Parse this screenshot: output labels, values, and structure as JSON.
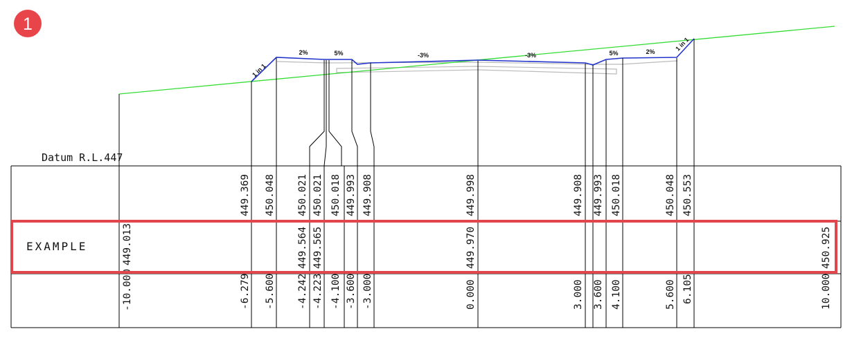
{
  "badge": {
    "number": "1",
    "color": "#e8454b"
  },
  "datum_label": "Datum R.L.447",
  "row_label": "EXAMPLE",
  "colors": {
    "ground_line": "#33dd33",
    "design_line": "#2233cc",
    "pavement_layers": "#bbbbbb",
    "highlight": "#e0464b",
    "grid": "#000000"
  },
  "design_levels": [
    "449.369",
    "450.048",
    "450.021",
    "450.021",
    "450.018",
    "449.993",
    "449.908",
    "449.998",
    "449.908",
    "449.993",
    "450.018",
    "450.048",
    "450.553"
  ],
  "example_levels": [
    "449.013",
    "449.564",
    "449.565",
    "449.970",
    "450.925"
  ],
  "offsets": [
    "-10.000",
    "-6.279",
    "-5.600",
    "-4.242",
    "-4.223",
    "-4.100",
    "-3.600",
    "-3.000",
    "0.000",
    "3.000",
    "3.600",
    "4.100",
    "5.600",
    "6.105",
    "10.000"
  ],
  "grades": [
    "1 in 1",
    "2%",
    "5%",
    "-3%",
    "-3%",
    "5%",
    "2%",
    "1 in 1"
  ]
}
